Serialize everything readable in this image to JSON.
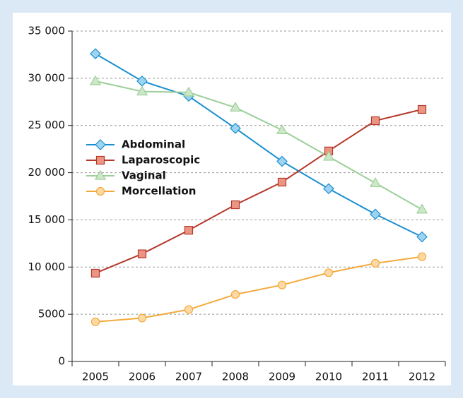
{
  "chart_data": {
    "type": "line",
    "categories": [
      "2005",
      "2006",
      "2007",
      "2008",
      "2009",
      "2010",
      "2011",
      "2012"
    ],
    "series": [
      {
        "name": "Abdominal",
        "color": "#1a8fd0",
        "marker_color": "#9fd4f1",
        "marker": "diamond",
        "values": [
          32600,
          29700,
          28100,
          24700,
          21200,
          18300,
          15600,
          13200
        ]
      },
      {
        "name": "Laparoscopic",
        "color": "#b5372a",
        "marker_color": "#eb9583",
        "marker": "square",
        "values": [
          9350,
          11400,
          13900,
          16600,
          19000,
          22300,
          25500,
          26700
        ]
      },
      {
        "name": "Vaginal",
        "color": "#9ccf98",
        "marker_color": "#cde8c9",
        "marker": "triangle",
        "values": [
          29700,
          28600,
          28500,
          26900,
          24500,
          21700,
          18900,
          16100
        ]
      },
      {
        "name": "Morcellation",
        "color": "#f2a93b",
        "marker_color": "#fddaa3",
        "marker": "circle",
        "values": [
          4200,
          4600,
          5500,
          7100,
          8100,
          9400,
          10400,
          11100
        ]
      }
    ],
    "ylim": [
      0,
      35000
    ],
    "yticks": [
      0,
      5000,
      {
        "value": 10000,
        "label": "10 000"
      },
      {
        "value": 15000,
        "label": "15 000"
      },
      {
        "value": 20000,
        "label": "20 000"
      },
      {
        "value": 25000,
        "label": "25 000"
      },
      {
        "value": 30000,
        "label": "30 000"
      },
      {
        "value": 35000,
        "label": "35 000"
      }
    ],
    "grid": true,
    "legend": "left"
  }
}
